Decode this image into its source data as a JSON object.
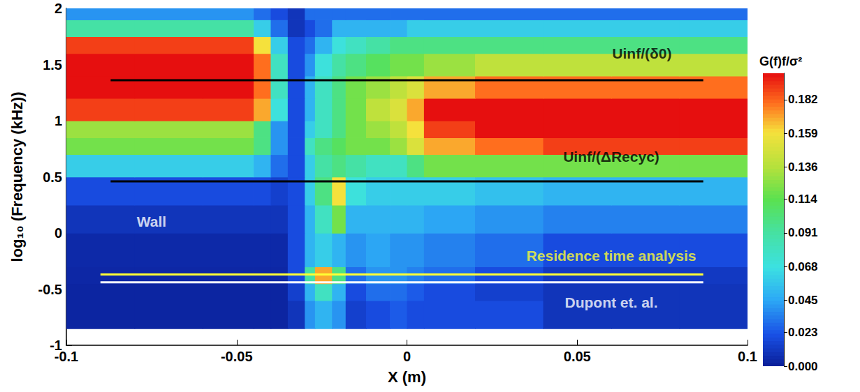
{
  "chart_data": {
    "type": "heatmap",
    "xlabel": "X (m)",
    "ylabel": "log₁₀ (Frequency (kHz))",
    "xlim": [
      -0.1,
      0.1
    ],
    "xticks": [
      -0.1,
      -0.05,
      0,
      0.05,
      0.1
    ],
    "ylim": [
      -1,
      2
    ],
    "yticks": [
      -1,
      -0.5,
      0,
      0.5,
      1,
      1.5,
      2
    ],
    "x_edges": [
      -0.1,
      -0.08,
      -0.06,
      -0.045,
      -0.04,
      -0.035,
      -0.03,
      -0.027,
      -0.022,
      -0.018,
      -0.012,
      -0.005,
      0,
      0.005,
      0.02,
      0.04,
      0.06,
      0.08,
      0.1
    ],
    "y_edges": [
      -0.85,
      -0.6,
      -0.45,
      -0.3,
      0,
      0.25,
      0.5,
      0.7,
      0.85,
      1.0,
      1.2,
      1.4,
      1.6,
      1.75,
      1.9,
      2.0
    ],
    "cells": [
      [
        0.003,
        0.003,
        0.003,
        0.003,
        0.003,
        0.01,
        0.04,
        0.05,
        0.04,
        0.015,
        0.02,
        0.025,
        0.02,
        0.02,
        0.02,
        0.01,
        0.01,
        0.01
      ],
      [
        0.003,
        0.003,
        0.003,
        0.003,
        0.003,
        0.015,
        0.05,
        0.08,
        0.05,
        0.02,
        0.03,
        0.03,
        0.025,
        0.02,
        0.015,
        0.01,
        0.01,
        0.01
      ],
      [
        0.004,
        0.004,
        0.004,
        0.004,
        0.004,
        0.02,
        0.09,
        0.17,
        0.1,
        0.03,
        0.04,
        0.04,
        0.035,
        0.03,
        0.02,
        0.012,
        0.012,
        0.012
      ],
      [
        0.005,
        0.005,
        0.005,
        0.005,
        0.005,
        0.02,
        0.05,
        0.06,
        0.05,
        0.04,
        0.045,
        0.04,
        0.04,
        0.035,
        0.03,
        0.02,
        0.02,
        0.02
      ],
      [
        0.01,
        0.01,
        0.01,
        0.01,
        0.01,
        0.02,
        0.05,
        0.08,
        0.12,
        0.05,
        0.05,
        0.05,
        0.05,
        0.045,
        0.04,
        0.035,
        0.035,
        0.035
      ],
      [
        0.02,
        0.02,
        0.02,
        0.02,
        0.015,
        0.02,
        0.06,
        0.1,
        0.16,
        0.07,
        0.06,
        0.06,
        0.06,
        0.06,
        0.055,
        0.05,
        0.05,
        0.05
      ],
      [
        0.06,
        0.06,
        0.06,
        0.05,
        0.03,
        0.02,
        0.06,
        0.09,
        0.1,
        0.09,
        0.08,
        0.08,
        0.1,
        0.12,
        0.12,
        0.12,
        0.12,
        0.12
      ],
      [
        0.12,
        0.12,
        0.12,
        0.1,
        0.04,
        0.02,
        0.08,
        0.1,
        0.11,
        0.12,
        0.12,
        0.13,
        0.15,
        0.17,
        0.18,
        0.19,
        0.19,
        0.19
      ],
      [
        0.13,
        0.13,
        0.13,
        0.1,
        0.04,
        0.02,
        0.06,
        0.08,
        0.1,
        0.12,
        0.13,
        0.14,
        0.16,
        0.19,
        0.2,
        0.2,
        0.2,
        0.2
      ],
      [
        0.19,
        0.19,
        0.19,
        0.17,
        0.07,
        0.02,
        0.05,
        0.08,
        0.1,
        0.12,
        0.14,
        0.15,
        0.17,
        0.2,
        0.2,
        0.2,
        0.2,
        0.2
      ],
      [
        0.2,
        0.2,
        0.2,
        0.18,
        0.08,
        0.02,
        0.05,
        0.08,
        0.1,
        0.12,
        0.13,
        0.14,
        0.15,
        0.17,
        0.18,
        0.18,
        0.18,
        0.18
      ],
      [
        0.2,
        0.2,
        0.2,
        0.18,
        0.08,
        0.02,
        0.04,
        0.07,
        0.09,
        0.1,
        0.11,
        0.12,
        0.12,
        0.13,
        0.14,
        0.14,
        0.14,
        0.14
      ],
      [
        0.19,
        0.19,
        0.19,
        0.16,
        0.06,
        0.02,
        0.03,
        0.05,
        0.07,
        0.08,
        0.09,
        0.1,
        0.1,
        0.1,
        0.1,
        0.1,
        0.1,
        0.1
      ],
      [
        0.09,
        0.09,
        0.09,
        0.06,
        0.03,
        0.01,
        0.02,
        0.03,
        0.05,
        0.05,
        0.05,
        0.05,
        0.06,
        0.06,
        0.06,
        0.06,
        0.06,
        0.06
      ],
      [
        0.04,
        0.04,
        0.04,
        0.03,
        0.02,
        0.01,
        0.03,
        0.03,
        0.03,
        0.03,
        0.03,
        0.03,
        0.03,
        0.03,
        0.03,
        0.03,
        0.03,
        0.03
      ]
    ],
    "colorbar": {
      "title": "G(f)f/σ²",
      "lim": [
        0,
        0.2
      ],
      "ticks": [
        {
          "value": 0,
          "label": "0.000"
        },
        0.023,
        0.045,
        0.068,
        0.091,
        0.114,
        0.136,
        0.159,
        0.182
      ]
    },
    "lines": [
      {
        "y": 1.36,
        "x": [
          -0.087,
          0.087
        ],
        "color": "#000000"
      },
      {
        "y": 0.46,
        "x": [
          -0.087,
          0.087
        ],
        "color": "#000000"
      },
      {
        "y": -0.37,
        "x": [
          -0.09,
          0.087
        ],
        "color": "#ffff33"
      },
      {
        "y": -0.44,
        "x": [
          -0.09,
          0.087
        ],
        "color": "#ffffff"
      }
    ],
    "annotations": [
      {
        "text": "Uinf/(δ0)",
        "x": 0.069,
        "y": 1.6,
        "color": "#000000"
      },
      {
        "text": "Uinf/(ΔRecyc)",
        "x": 0.06,
        "y": 0.68,
        "color": "#000000"
      },
      {
        "text": "Wall",
        "x": -0.075,
        "y": 0.1,
        "color": "#ffffff"
      },
      {
        "text": "Residence time analysis",
        "x": 0.06,
        "y": -0.2,
        "color": "#ffff33"
      },
      {
        "text": "Dupont et. al.",
        "x": 0.06,
        "y": -0.62,
        "color": "#ffffff"
      }
    ]
  }
}
